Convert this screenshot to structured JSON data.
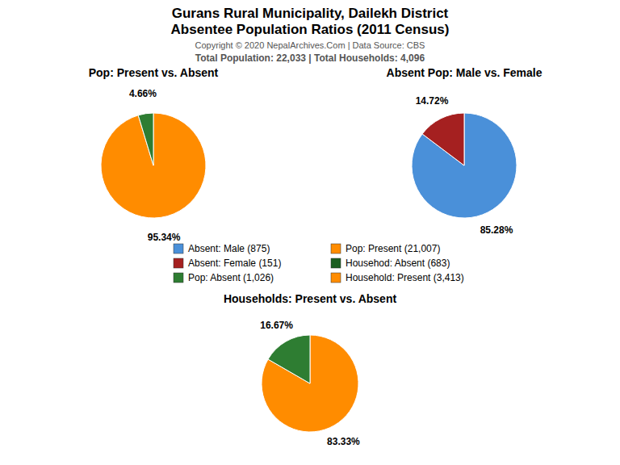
{
  "title": "Gurans Rural Municipality, Dailekh District",
  "subtitle": "Absentee Population Ratios (2011 Census)",
  "annotations": [
    "Copyright © 2020 NepalArchives.Com | Data Source: CBS",
    "Total Population: 22,033 | Total Households: 4,096"
  ],
  "legend_items": [
    {
      "name": "Absent: Male (875)",
      "color": "#4A90D9"
    },
    {
      "name": "Absent: Female (151)",
      "color": "#A52020"
    },
    {
      "name": "Pop: Absent (1,026)",
      "color": "#2E7D32"
    },
    {
      "name": "Pop: Present (21,007)",
      "color": "#FF8C00"
    },
    {
      "name": "Househod: Absent (683)",
      "color": "#1B5E20"
    },
    {
      "name": "Household: Present (3,413)",
      "color": "#FF8C00"
    }
  ],
  "chart_data": [
    {
      "type": "pie",
      "title": "Pop: Present vs. Absent",
      "values": [
        95.34,
        4.66
      ],
      "value_labels": [
        "95.34%",
        "4.66%"
      ],
      "colors": [
        "#FF8C00",
        "#2E7D32"
      ],
      "data_labels": true
    },
    {
      "type": "pie",
      "title": "Absent Pop: Male vs. Female",
      "values": [
        85.28,
        14.72
      ],
      "value_labels": [
        "85.28%",
        "14.72%"
      ],
      "colors": [
        "#4A90D9",
        "#A52020"
      ],
      "data_labels": true
    },
    {
      "type": "pie",
      "title": "Households: Present vs. Absent",
      "values": [
        83.33,
        16.67
      ],
      "value_labels": [
        "83.33%",
        "16.67%"
      ],
      "colors": [
        "#FF8C00",
        "#2E7D32"
      ],
      "data_labels": true
    }
  ]
}
